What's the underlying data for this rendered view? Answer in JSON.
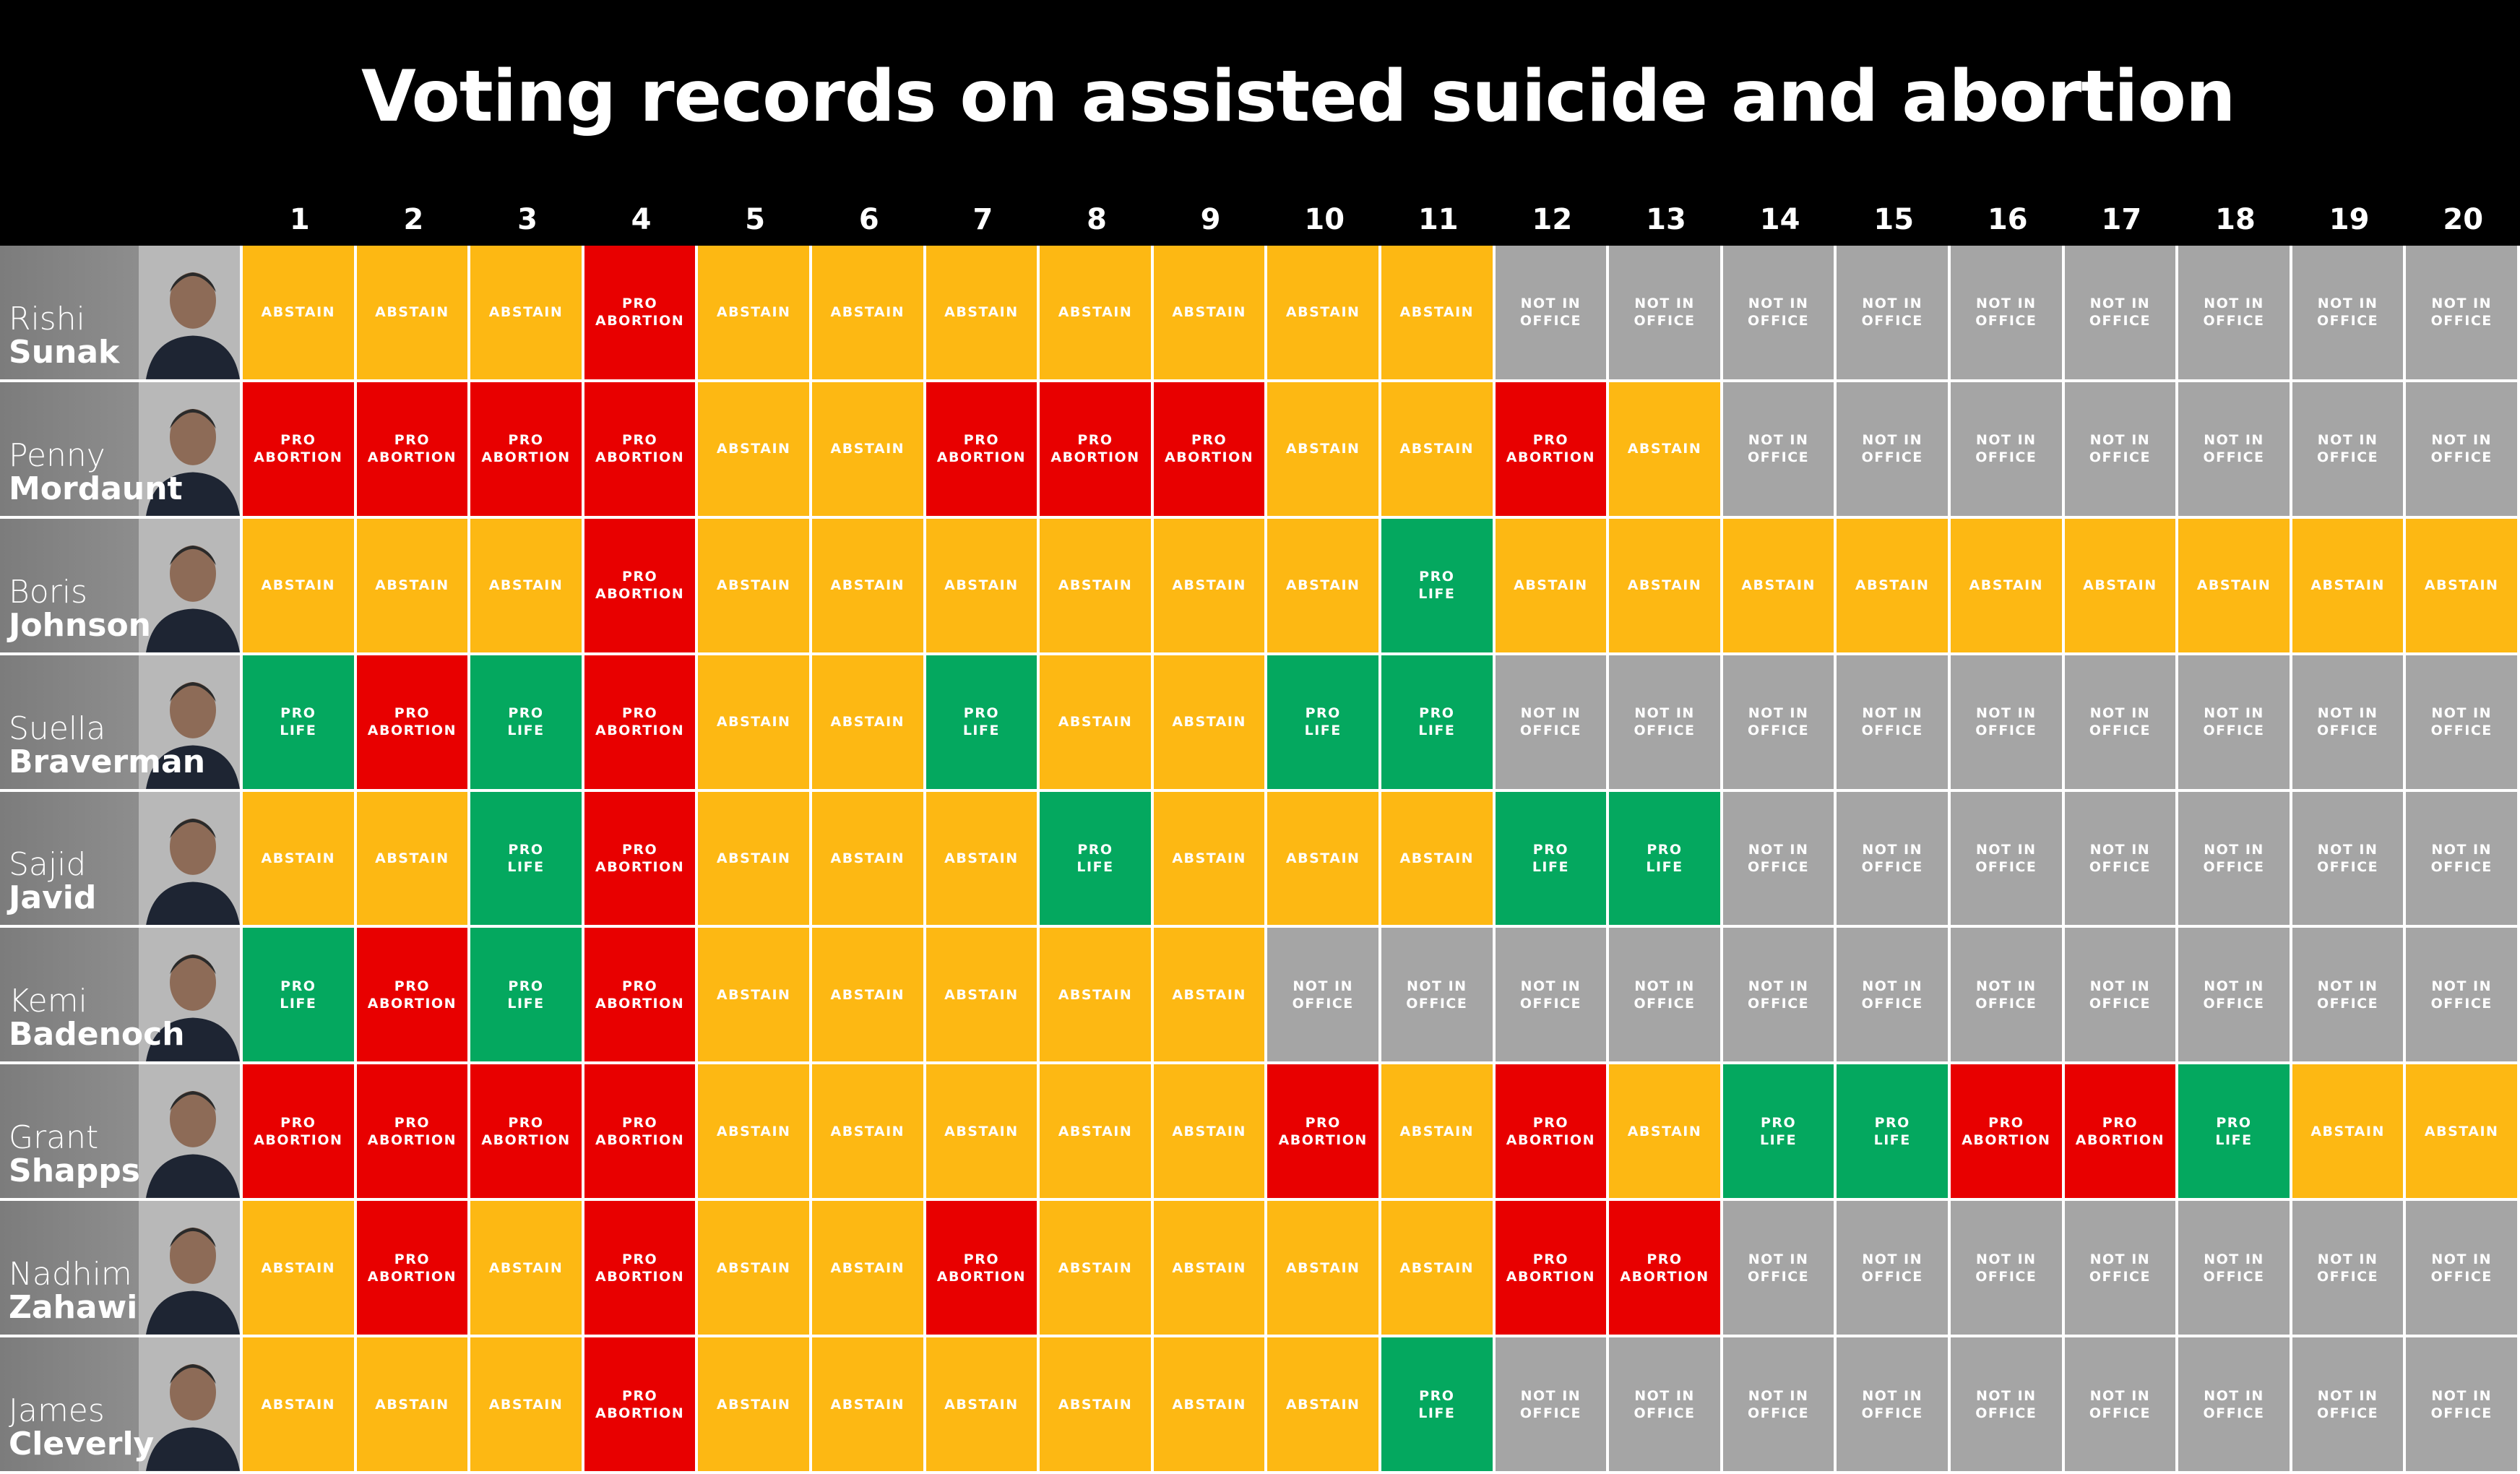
{
  "title": "Voting records on assisted suicide and abortion",
  "columns": [
    "1",
    "2",
    "3",
    "4",
    "5",
    "6",
    "7",
    "8",
    "9",
    "10",
    "11",
    "12",
    "13",
    "14",
    "15",
    "16",
    "17",
    "18",
    "19",
    "20"
  ],
  "colors": {
    "ABSTAIN": "#fdb813",
    "PRO ABORTION": "#e80000",
    "PRO LIFE": "#04a85f",
    "NOT IN OFFICE": "#a5a5a5"
  },
  "rows": [
    {
      "first": "Rishi",
      "last": "Sunak",
      "votes": [
        "ABSTAIN",
        "ABSTAIN",
        "ABSTAIN",
        "PRO ABORTION",
        "ABSTAIN",
        "ABSTAIN",
        "ABSTAIN",
        "ABSTAIN",
        "ABSTAIN",
        "ABSTAIN",
        "ABSTAIN",
        "NOT IN OFFICE",
        "NOT IN OFFICE",
        "NOT IN OFFICE",
        "NOT IN OFFICE",
        "NOT IN OFFICE",
        "NOT IN OFFICE",
        "NOT IN OFFICE",
        "NOT IN OFFICE",
        "NOT IN OFFICE"
      ]
    },
    {
      "first": "Penny",
      "last": "Mordaunt",
      "votes": [
        "PRO ABORTION",
        "PRO ABORTION",
        "PRO ABORTION",
        "PRO ABORTION",
        "ABSTAIN",
        "ABSTAIN",
        "PRO ABORTION",
        "PRO ABORTION",
        "PRO ABORTION",
        "ABSTAIN",
        "ABSTAIN",
        "PRO ABORTION",
        "ABSTAIN",
        "NOT IN OFFICE",
        "NOT IN OFFICE",
        "NOT IN OFFICE",
        "NOT IN OFFICE",
        "NOT IN OFFICE",
        "NOT IN OFFICE",
        "NOT IN OFFICE"
      ]
    },
    {
      "first": "Boris",
      "last": "Johnson",
      "votes": [
        "ABSTAIN",
        "ABSTAIN",
        "ABSTAIN",
        "PRO ABORTION",
        "ABSTAIN",
        "ABSTAIN",
        "ABSTAIN",
        "ABSTAIN",
        "ABSTAIN",
        "ABSTAIN",
        "PRO LIFE",
        "ABSTAIN",
        "ABSTAIN",
        "ABSTAIN",
        "ABSTAIN",
        "ABSTAIN",
        "ABSTAIN",
        "ABSTAIN",
        "ABSTAIN",
        "ABSTAIN"
      ]
    },
    {
      "first": "Suella",
      "last": "Braverman",
      "votes": [
        "PRO LIFE",
        "PRO ABORTION",
        "PRO LIFE",
        "PRO ABORTION",
        "ABSTAIN",
        "ABSTAIN",
        "PRO LIFE",
        "ABSTAIN",
        "ABSTAIN",
        "PRO LIFE",
        "PRO LIFE",
        "NOT IN OFFICE",
        "NOT IN OFFICE",
        "NOT IN OFFICE",
        "NOT IN OFFICE",
        "NOT IN OFFICE",
        "NOT IN OFFICE",
        "NOT IN OFFICE",
        "NOT IN OFFICE",
        "NOT IN OFFICE"
      ]
    },
    {
      "first": "Sajid",
      "last": "Javid",
      "votes": [
        "ABSTAIN",
        "ABSTAIN",
        "PRO LIFE",
        "PRO ABORTION",
        "ABSTAIN",
        "ABSTAIN",
        "ABSTAIN",
        "PRO LIFE",
        "ABSTAIN",
        "ABSTAIN",
        "ABSTAIN",
        "PRO LIFE",
        "PRO LIFE",
        "NOT IN OFFICE",
        "NOT IN OFFICE",
        "NOT IN OFFICE",
        "NOT IN OFFICE",
        "NOT IN OFFICE",
        "NOT IN OFFICE",
        "NOT IN OFFICE"
      ]
    },
    {
      "first": "Kemi",
      "last": "Badenoch",
      "votes": [
        "PRO LIFE",
        "PRO ABORTION",
        "PRO LIFE",
        "PRO ABORTION",
        "ABSTAIN",
        "ABSTAIN",
        "ABSTAIN",
        "ABSTAIN",
        "ABSTAIN",
        "NOT IN OFFICE",
        "NOT IN OFFICE",
        "NOT IN OFFICE",
        "NOT IN OFFICE",
        "NOT IN OFFICE",
        "NOT IN OFFICE",
        "NOT IN OFFICE",
        "NOT IN OFFICE",
        "NOT IN OFFICE",
        "NOT IN OFFICE",
        "NOT IN OFFICE"
      ]
    },
    {
      "first": "Grant",
      "last": "Shapps",
      "votes": [
        "PRO ABORTION",
        "PRO ABORTION",
        "PRO ABORTION",
        "PRO ABORTION",
        "ABSTAIN",
        "ABSTAIN",
        "ABSTAIN",
        "ABSTAIN",
        "ABSTAIN",
        "PRO ABORTION",
        "ABSTAIN",
        "PRO ABORTION",
        "ABSTAIN",
        "PRO LIFE",
        "PRO LIFE",
        "PRO ABORTION",
        "PRO ABORTION",
        "PRO LIFE",
        "ABSTAIN",
        "ABSTAIN"
      ]
    },
    {
      "first": "Nadhim",
      "last": "Zahawi",
      "votes": [
        "ABSTAIN",
        "PRO ABORTION",
        "ABSTAIN",
        "PRO ABORTION",
        "ABSTAIN",
        "ABSTAIN",
        "PRO ABORTION",
        "ABSTAIN",
        "ABSTAIN",
        "ABSTAIN",
        "ABSTAIN",
        "PRO ABORTION",
        "PRO ABORTION",
        "NOT IN OFFICE",
        "NOT IN OFFICE",
        "NOT IN OFFICE",
        "NOT IN OFFICE",
        "NOT IN OFFICE",
        "NOT IN OFFICE",
        "NOT IN OFFICE"
      ]
    },
    {
      "first": "James",
      "last": "Cleverly",
      "votes": [
        "ABSTAIN",
        "ABSTAIN",
        "ABSTAIN",
        "PRO ABORTION",
        "ABSTAIN",
        "ABSTAIN",
        "ABSTAIN",
        "ABSTAIN",
        "ABSTAIN",
        "ABSTAIN",
        "PRO LIFE",
        "NOT IN OFFICE",
        "NOT IN OFFICE",
        "NOT IN OFFICE",
        "NOT IN OFFICE",
        "NOT IN OFFICE",
        "NOT IN OFFICE",
        "NOT IN OFFICE",
        "NOT IN OFFICE",
        "NOT IN OFFICE"
      ]
    }
  ]
}
